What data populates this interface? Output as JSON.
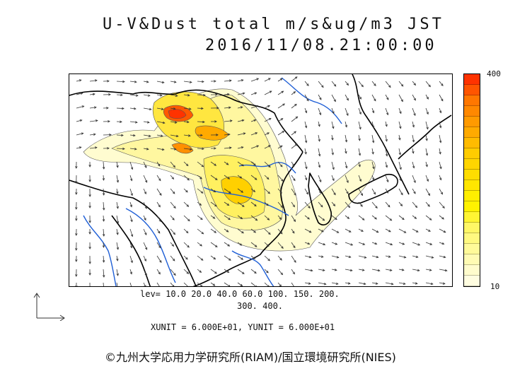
{
  "header": {
    "title_line1": "U-V&Dust total m/s&ug/m3 JST",
    "title_line2": "2016/11/08.21:00:00"
  },
  "colorbar": {
    "max_label": "400",
    "min_label": "10",
    "colors": [
      "#ff3300",
      "#ff5500",
      "#ff7700",
      "#ff8800",
      "#ff9a00",
      "#ffaa00",
      "#ffbb00",
      "#ffcc00",
      "#ffd500",
      "#ffdd00",
      "#ffe600",
      "#ffee00",
      "#fff200",
      "#fff533",
      "#fff766",
      "#fff980",
      "#fffa99",
      "#fffbb3",
      "#fffccc",
      "#fffde0"
    ]
  },
  "legend": {
    "levels_line1": "lev= 10.0 20.0 40.0 60.0 100. 150. 200.",
    "levels_line2": "300. 400."
  },
  "units_line": "XUNIT = 6.000E+01, YUNIT = 6.000E+01",
  "credit": "©九州大学応用力学研究所(RIAM)/国立環境研究所(NIES)",
  "map_colors": {
    "coast": "#000000",
    "river": "#1f5fd6",
    "arrow": "#333333",
    "contour": "#555555"
  }
}
